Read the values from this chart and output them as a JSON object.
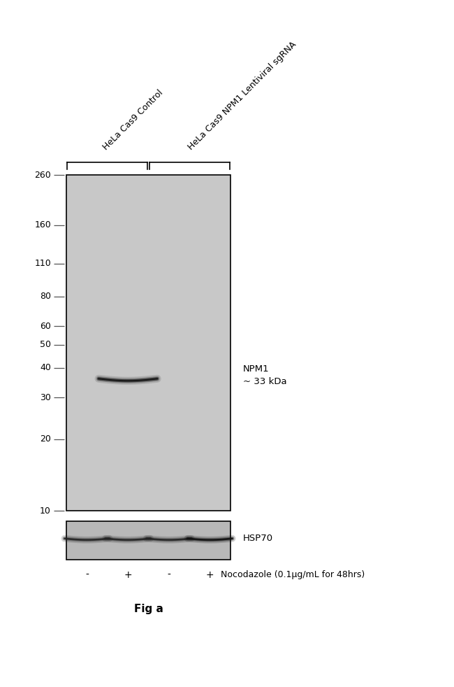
{
  "background_color": "#ffffff",
  "gel_bg_color": "#c8c8c8",
  "gel_bg_color2": "#d0d0d0",
  "marker_labels": [
    260,
    160,
    110,
    80,
    60,
    50,
    40,
    30,
    20,
    10
  ],
  "group1_label": "HeLa Cas9 Control",
  "group2_label": "HeLa Cas9 NPM1 Lentiviral sgRNA",
  "npm1_label": "NPM1\n~ 33 kDa",
  "hsp70_label": "HSP70",
  "nocodazole_label": "Nocodazole (0.1μg/mL for 48hrs)",
  "lane_labels": [
    "-",
    "+",
    "-",
    "+"
  ],
  "fig_label": "Fig a",
  "band_color": "#1a1a1a",
  "band_color_dark": "#0d0d0d",
  "text_color": "#000000",
  "marker_line_color": "#555555",
  "gel_border_color": "#000000",
  "hsp_band_color": "#2a2a2a"
}
